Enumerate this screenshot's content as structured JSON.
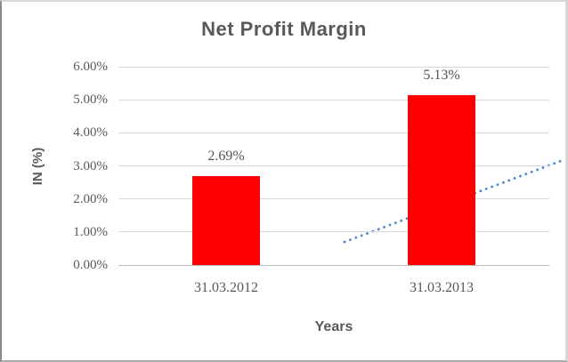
{
  "chart_data": {
    "type": "bar",
    "title": "Net Profit Margin",
    "categories": [
      "31.03.2012",
      "31.03.2013"
    ],
    "values": [
      2.69,
      5.13
    ],
    "data_labels": [
      "2.69%",
      "5.13%"
    ],
    "xlabel": "Years",
    "ylabel": "IN (%)",
    "ylim": [
      0,
      6
    ],
    "ytick_step": 1,
    "ytick_labels": [
      "0.00%",
      "1.00%",
      "2.00%",
      "3.00%",
      "4.00%",
      "5.00%",
      "6.00%"
    ],
    "grid": true,
    "legend_position": "none",
    "bar_color": "#ff0000",
    "trendline": {
      "type": "linear",
      "style": "dotted",
      "color": "#4e86c8"
    },
    "colors": {
      "text": "#595959",
      "gridline": "#d9d9d9",
      "axis_line": "#bfbfbf",
      "background": "#ffffff"
    }
  }
}
